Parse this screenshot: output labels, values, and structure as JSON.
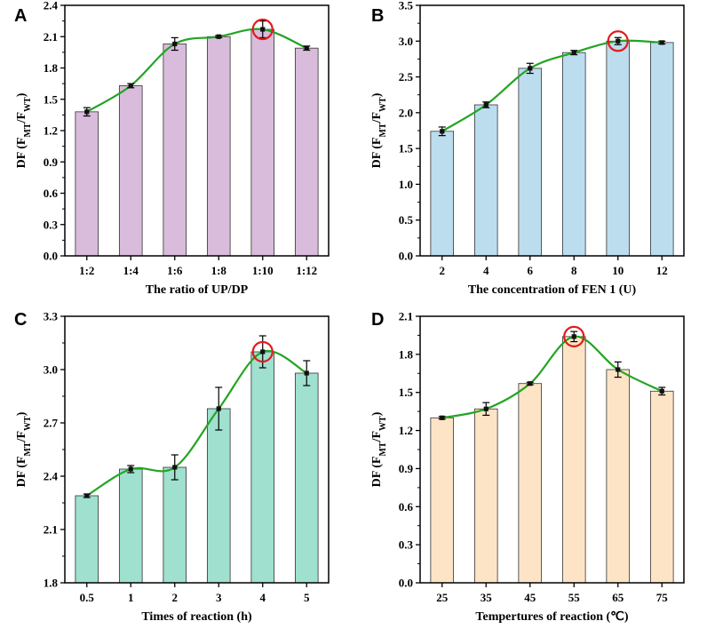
{
  "chart_data": [
    {
      "panel": "A",
      "type": "bar",
      "categories": [
        "1:2",
        "1:4",
        "1:6",
        "1:8",
        "1:10",
        "1:12"
      ],
      "values": [
        1.38,
        1.63,
        2.03,
        2.1,
        2.17,
        1.99
      ],
      "errors": [
        0.04,
        0.02,
        0.06,
        0.01,
        0.08,
        0.02
      ],
      "highlight_index": 4,
      "bar_color": "#d9bcdb",
      "xlabel": "The ratio of UP/DP",
      "ylabel": {
        "base": "DF (F",
        "sub1": "MT",
        "mid": "/F",
        "sub2": "WT",
        "end": ")"
      },
      "ylim": [
        0.0,
        2.4
      ],
      "yticks": [
        "0.0",
        "0.3",
        "0.6",
        "0.9",
        "1.2",
        "1.5",
        "1.8",
        "2.1",
        "2.4"
      ]
    },
    {
      "panel": "B",
      "type": "bar",
      "categories": [
        "2",
        "4",
        "6",
        "8",
        "10",
        "12"
      ],
      "values": [
        1.74,
        2.11,
        2.62,
        2.84,
        3.0,
        2.98
      ],
      "errors": [
        0.06,
        0.04,
        0.07,
        0.03,
        0.05,
        0.02
      ],
      "highlight_index": 4,
      "bar_color": "#bcddee",
      "xlabel": "The concentration of FEN 1 (U)",
      "ylabel": {
        "base": "DF (F",
        "sub1": "MT",
        "mid": "/F",
        "sub2": "WT",
        "end": ")"
      },
      "ylim": [
        0.0,
        3.5
      ],
      "yticks": [
        "0.0",
        "0.5",
        "1.0",
        "1.5",
        "2.0",
        "2.5",
        "3.0",
        "3.5"
      ]
    },
    {
      "panel": "C",
      "type": "bar",
      "categories": [
        "0.5",
        "1",
        "2",
        "3",
        "4",
        "5"
      ],
      "values": [
        2.29,
        2.44,
        2.45,
        2.78,
        3.1,
        2.98
      ],
      "errors": [
        0.01,
        0.02,
        0.07,
        0.12,
        0.09,
        0.07
      ],
      "highlight_index": 4,
      "bar_color": "#9fe0cf",
      "xlabel": "Times of reaction (h)",
      "ylabel": {
        "base": "DF (F",
        "sub1": "MT",
        "mid": "/F",
        "sub2": "WT",
        "end": ")"
      },
      "ylim": [
        1.8,
        3.3
      ],
      "yticks": [
        "1.8",
        "2.1",
        "2.4",
        "2.7",
        "3.0",
        "3.3"
      ]
    },
    {
      "panel": "D",
      "type": "bar",
      "categories": [
        "25",
        "35",
        "45",
        "55",
        "65",
        "75"
      ],
      "values": [
        1.3,
        1.37,
        1.57,
        1.94,
        1.68,
        1.51
      ],
      "errors": [
        0.01,
        0.05,
        0.01,
        0.04,
        0.06,
        0.03
      ],
      "highlight_index": 3,
      "bar_color": "#fde4c6",
      "xlabel": "Tempertures of reaction (℃)",
      "ylabel": {
        "base": "DF (F",
        "sub1": "MT",
        "mid": "/F",
        "sub2": "WT",
        "end": ")"
      },
      "ylim": [
        0.0,
        2.1
      ],
      "yticks": [
        "0.0",
        "0.3",
        "0.6",
        "0.9",
        "1.2",
        "1.5",
        "1.8",
        "2.1"
      ]
    }
  ],
  "style": {
    "curve_color": "#22a522",
    "highlight_color": "#e31a1c",
    "point_color": "#111111",
    "axis_color": "#000000"
  }
}
